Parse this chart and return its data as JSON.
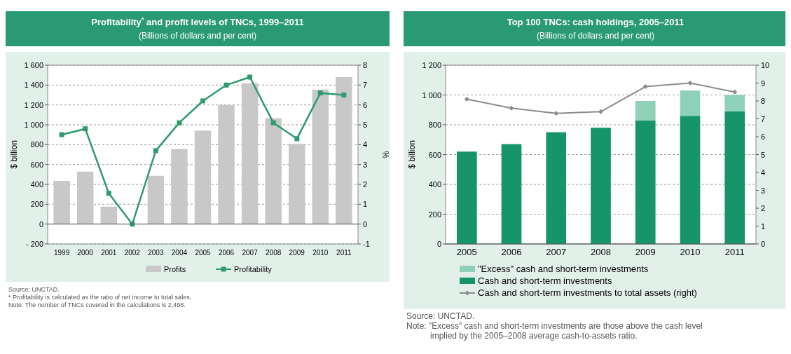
{
  "chart_data": [
    {
      "type": "bar",
      "title": "Profitability$^{*}$ and profit levels of TNCs, 1999–2011",
      "subtitle": "(Billions of dollars and per cent)",
      "ylabel": "$ billion",
      "y2label": "%",
      "categories": [
        "1999",
        "2000",
        "2001",
        "2002",
        "2003",
        "2004",
        "2005",
        "2006",
        "2007",
        "2008",
        "2009",
        "2010",
        "2011"
      ],
      "series": [
        {
          "name": "Profits",
          "color": "#c8c8c8",
          "values": [
            435,
            528,
            176,
            0,
            486,
            755,
            942,
            1200,
            1418,
            1066,
            807,
            1354,
            1480
          ]
        },
        {
          "name": "Profitability",
          "type": "line",
          "axis": "y2",
          "color": "#2e9a6e",
          "values": [
            4.5,
            4.8,
            1.55,
            0,
            3.7,
            5.1,
            6.2,
            7.0,
            7.4,
            5.1,
            4.3,
            6.6,
            6.5
          ]
        }
      ],
      "ylim": [
        -200,
        1600
      ],
      "yticks": [
        {
          "value": -200,
          "label": "- 200"
        },
        0,
        200,
        400,
        600,
        800,
        {
          "value": 1000,
          "label": "1 000"
        },
        {
          "value": 1200,
          "label": "1 200"
        },
        {
          "value": 1400,
          "label": "1 400"
        },
        {
          "value": 1600,
          "label": "1 600"
        }
      ],
      "y2lim": [
        -1,
        8
      ],
      "y2ticks": [
        -1,
        0,
        1,
        2,
        3,
        4,
        5,
        6,
        7,
        8
      ],
      "grid": "y",
      "legend": "bottom",
      "marker": "square",
      "line_style": "solid",
      "annotations": [
        "Source: UNCTAD.",
        "* Profitability is calculated as the ratio of net income to total sales.",
        "Note: The number of TNCs covered in the calculations is 2,498."
      ]
    },
    {
      "type": "bar",
      "title": "Top 100 TNCs: cash holdings, 2005–2011",
      "subtitle": "(Billions of dollars and per cent)",
      "ylabel": "$ billion",
      "categories": [
        "2005",
        "2006",
        "2007",
        "2008",
        "2009",
        "2010",
        "2011"
      ],
      "stacked": true,
      "series": [
        {
          "name": "Cash and short-term investments",
          "color": "#16956b",
          "values": [
            620,
            670,
            750,
            780,
            830,
            860,
            890
          ]
        },
        {
          "name": "\"Excess\" cash and short-term investments",
          "color": "#8fd0b8",
          "values": [
            0,
            0,
            0,
            0,
            130,
            170,
            110
          ]
        },
        {
          "name": "Cash and short-term investments to total assets (right)",
          "type": "line",
          "axis": "y2",
          "color": "#8c8c8c",
          "values": [
            8.1,
            7.6,
            7.3,
            7.4,
            8.8,
            9.0,
            8.5
          ]
        }
      ],
      "ylim": [
        0,
        1200
      ],
      "yticks": [
        0,
        200,
        400,
        600,
        800,
        {
          "value": 1000,
          "label": "1 000"
        },
        {
          "value": 1200,
          "label": "1 200"
        }
      ],
      "y2lim": [
        0,
        10
      ],
      "y2ticks": [
        0,
        1,
        2,
        3,
        4,
        5,
        6,
        7,
        8,
        9,
        10
      ],
      "grid": "y",
      "legend": "bottom",
      "marker": "diamond",
      "line_style": "solid",
      "annotations": [
        "Source: UNCTAD.",
        "Note: \"Excess\" cash and short-term investments are those above the cash level implied by the 2005–2008 average cash-to-assets ratio."
      ]
    }
  ]
}
